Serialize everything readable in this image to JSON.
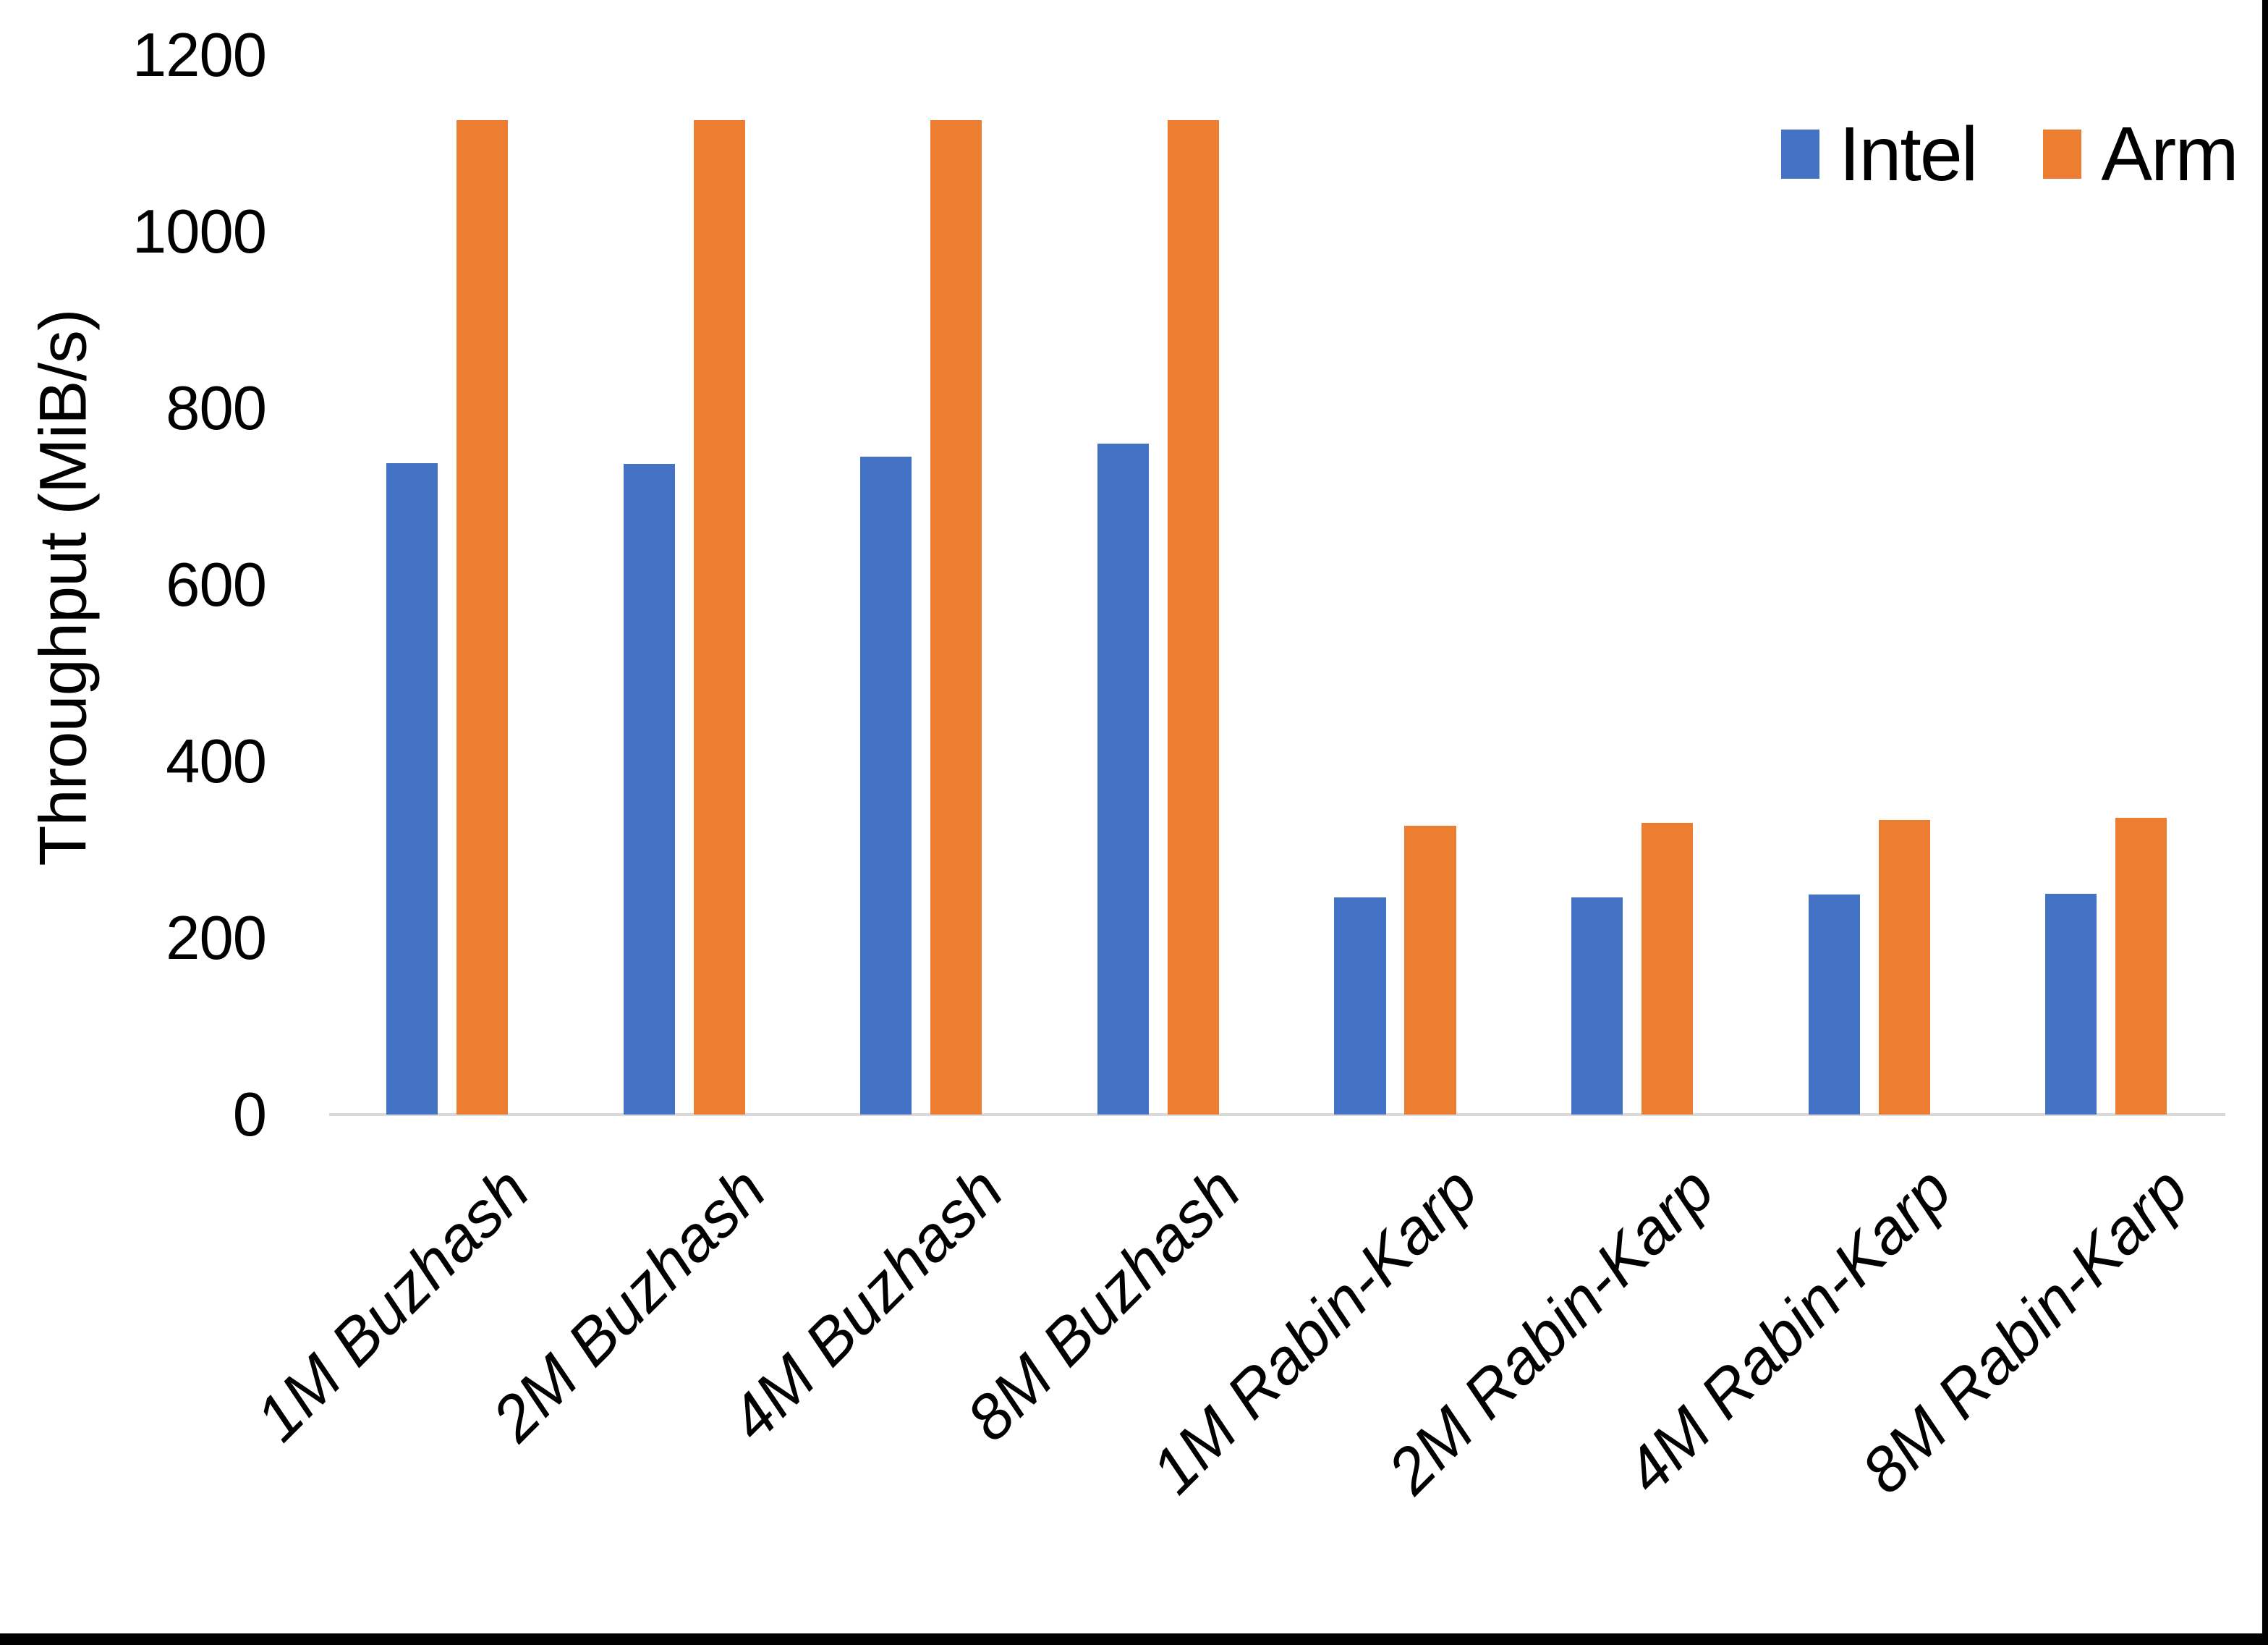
{
  "chart_data": {
    "type": "bar",
    "title": "",
    "categories": [
      "1M Buzhash",
      "2M Buzhash",
      "4M Buzhash",
      "8M Buzhash",
      "1M Rabin-Karp",
      "2M Rabin-Karp",
      "4M Rabin-Karp",
      "8M Rabin-Karp"
    ],
    "series": [
      {
        "name": "Intel",
        "color": "#4472C4",
        "values": [
          738,
          737,
          745,
          760,
          246,
          246,
          249,
          250
        ]
      },
      {
        "name": "Arm",
        "color": "#ED7D31",
        "values": [
          1126,
          1126,
          1126,
          1126,
          327,
          330,
          334,
          336
        ]
      }
    ],
    "xlabel": "",
    "ylabel": "Throughput (MiB/s)",
    "ylim": [
      0,
      1200
    ],
    "yticks": [
      0,
      200,
      400,
      600,
      800,
      1000,
      1200
    ],
    "grid": false,
    "legend_position": "top-right",
    "axis_line_color": "#D9D9D9",
    "text_color": "#000000"
  }
}
